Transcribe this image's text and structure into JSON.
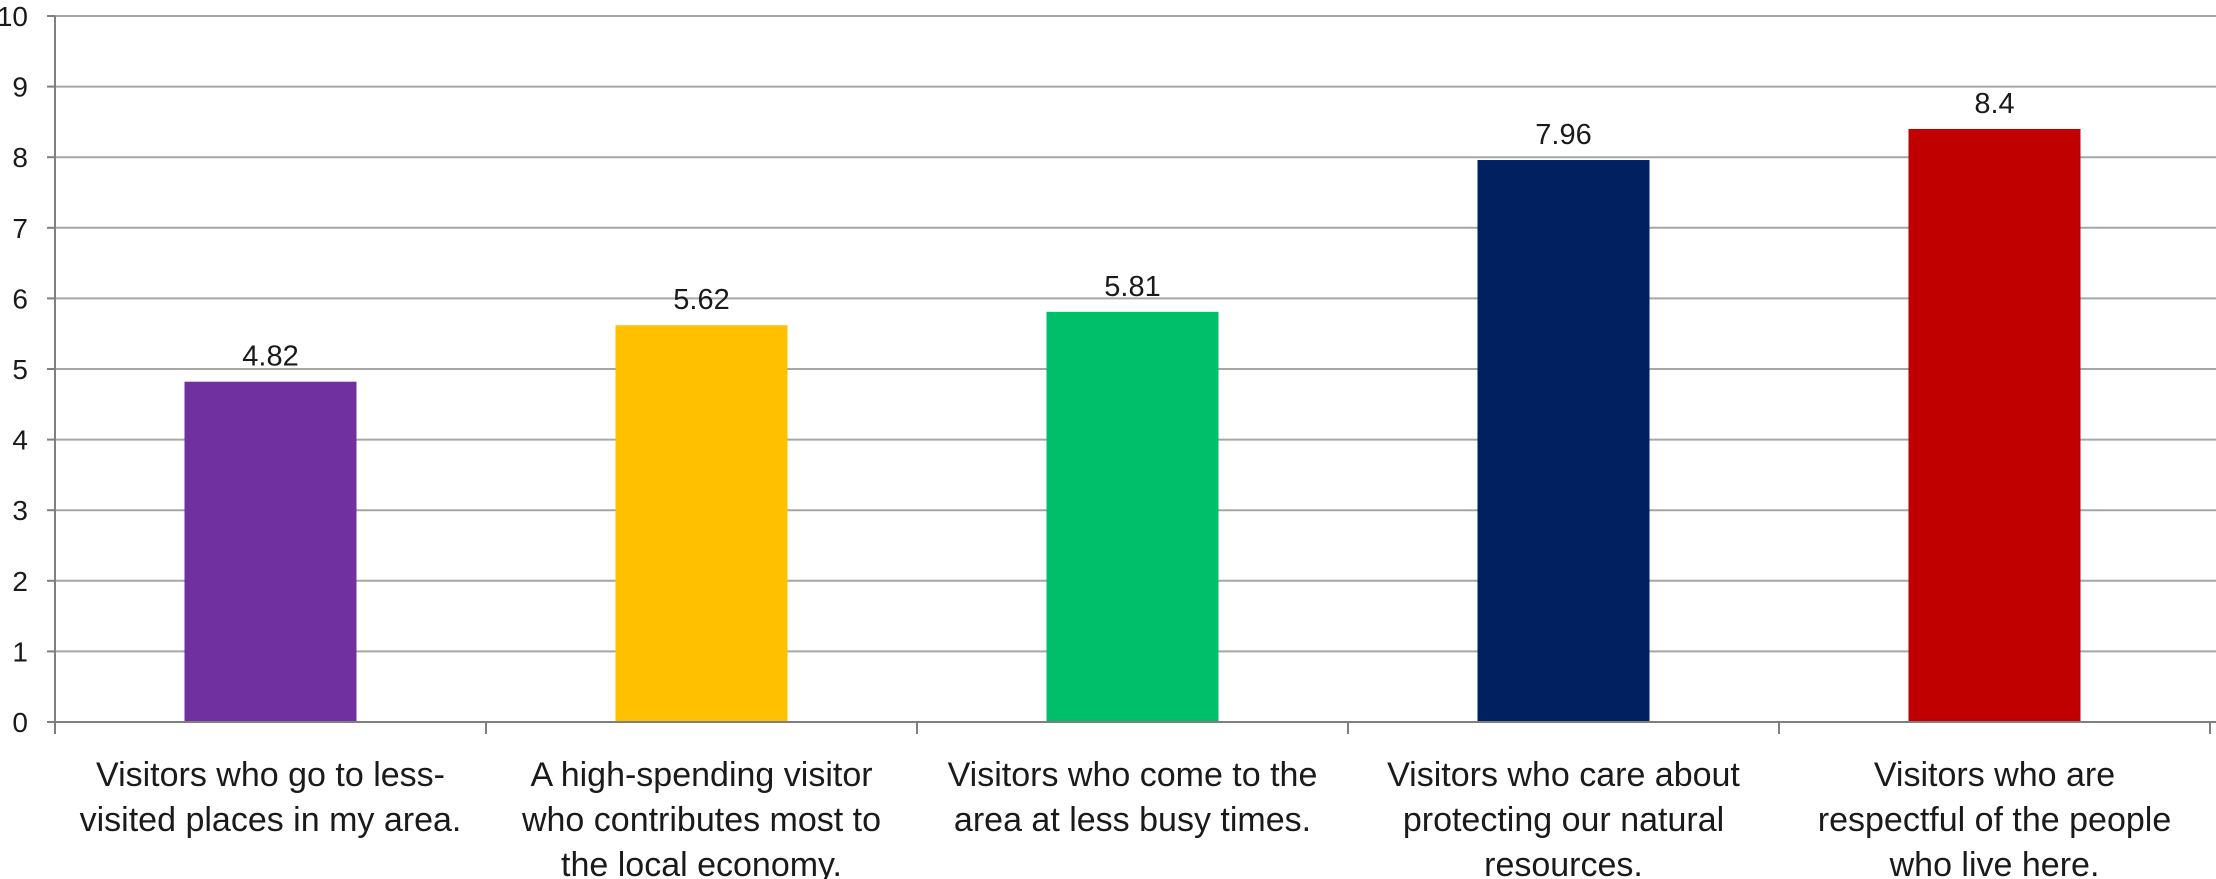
{
  "chart_data": {
    "type": "bar",
    "categories": [
      [
        "Visitors who go to less-",
        "visited places in my area."
      ],
      [
        "A high-spending visitor",
        "who contributes most to",
        "the local economy."
      ],
      [
        "Visitors who come to the",
        "area at less busy times."
      ],
      [
        "Visitors who care about",
        "protecting our natural",
        "resources."
      ],
      [
        "Visitors who are",
        "respectful of the people",
        "who live here."
      ]
    ],
    "values": [
      4.82,
      5.62,
      5.81,
      7.96,
      8.4
    ],
    "value_labels": [
      "4.82",
      "5.62",
      "5.81",
      "7.96",
      "8.4"
    ],
    "colors": [
      "#7030a0",
      "#ffc000",
      "#00bf6a",
      "#002060",
      "#c00000"
    ],
    "title": "",
    "xlabel": "",
    "ylabel": "",
    "ylim": [
      0,
      10
    ],
    "yticks": [
      "0",
      "1",
      "2",
      "3",
      "4",
      "5",
      "6",
      "7",
      "8",
      "9",
      "10"
    ],
    "grid": true,
    "gridline_color": "#a6a6a6",
    "axis_color": "#7f7f7f",
    "legend": "none"
  }
}
